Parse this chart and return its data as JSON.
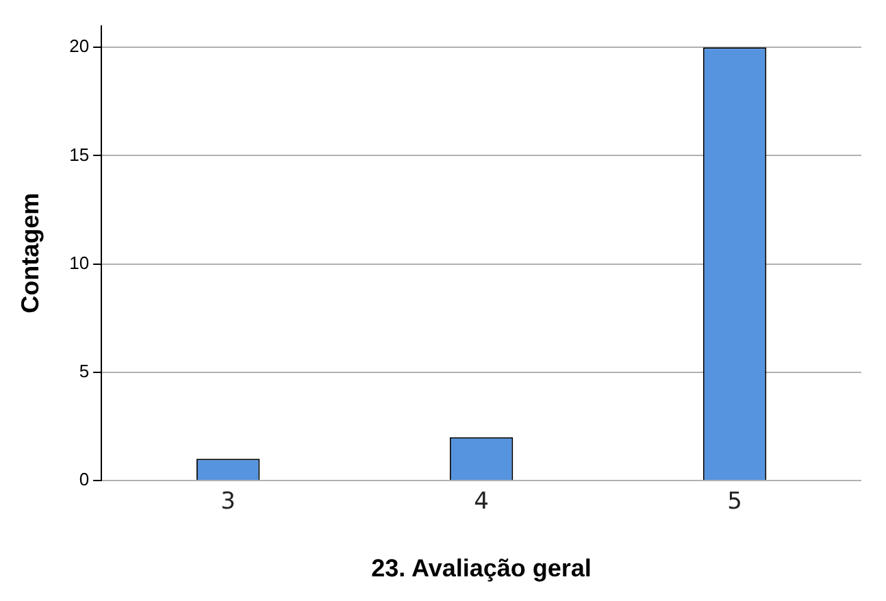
{
  "chart_data": {
    "type": "bar",
    "xlabel": "23. Avaliação geral",
    "ylabel": "Contagem",
    "categories": [
      "3",
      "4",
      "5"
    ],
    "values": [
      1,
      2,
      20
    ],
    "color": "#5694e0",
    "ylim": [
      0,
      21
    ],
    "yticks": [
      0,
      5,
      10,
      15,
      20
    ],
    "grid": "y",
    "legend": false
  }
}
